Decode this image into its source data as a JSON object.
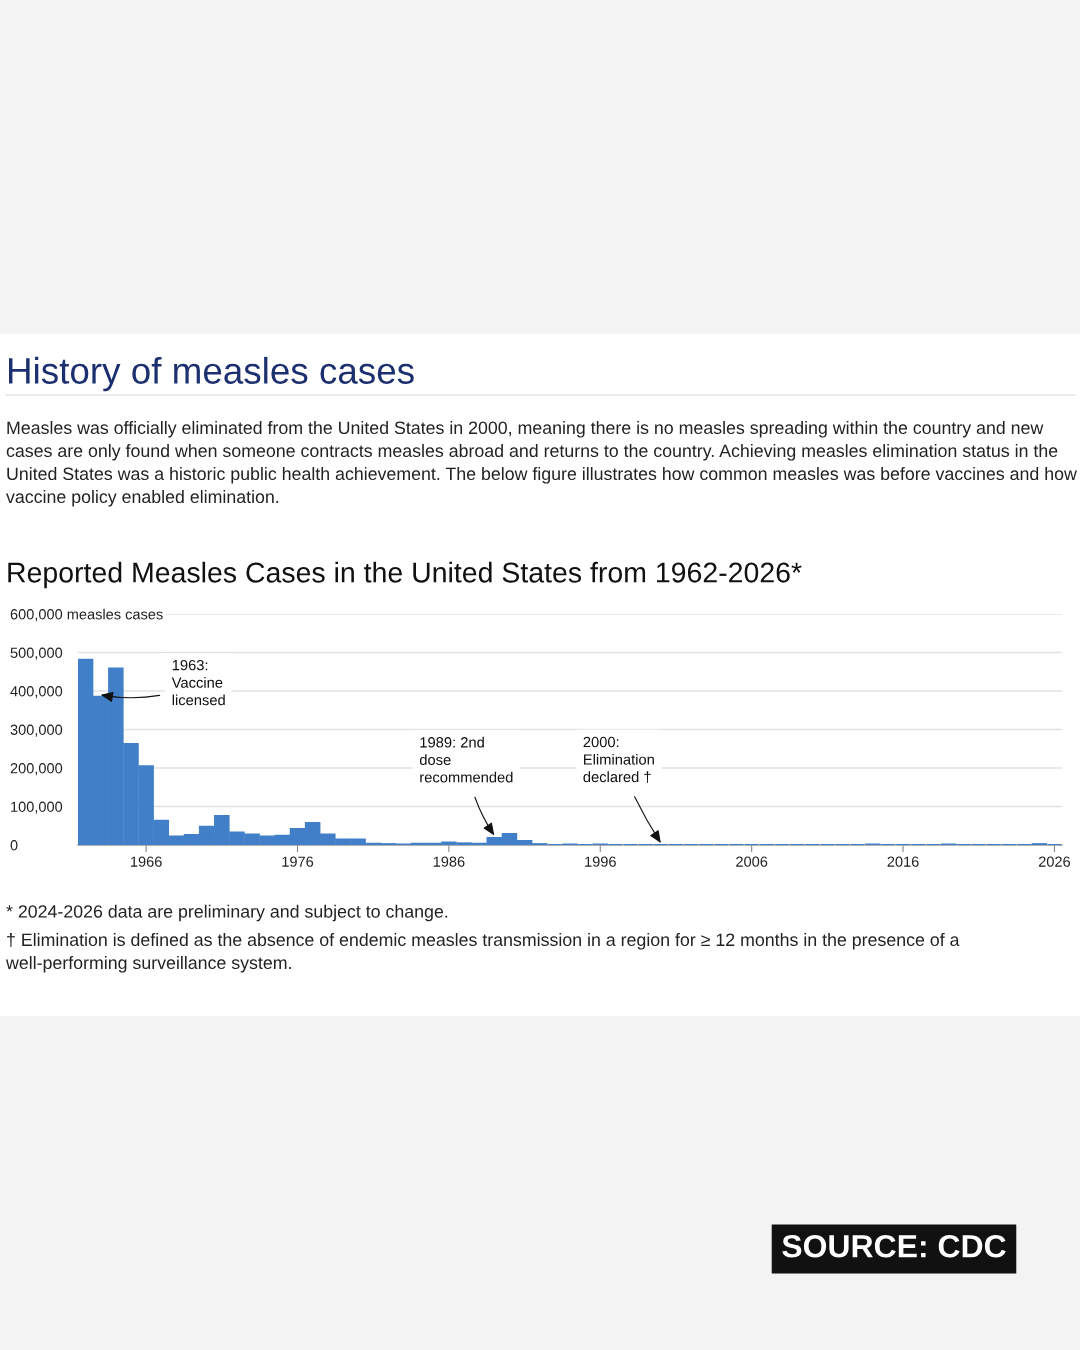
{
  "chart_data": {
    "type": "bar",
    "title": "Reported Measles Cases in the United States from 1962-2026*",
    "x": [
      1962,
      1963,
      1964,
      1965,
      1966,
      1967,
      1968,
      1969,
      1970,
      1971,
      1972,
      1973,
      1974,
      1975,
      1976,
      1977,
      1978,
      1979,
      1980,
      1981,
      1982,
      1983,
      1984,
      1985,
      1986,
      1987,
      1988,
      1989,
      1990,
      1991,
      1992,
      1993,
      1994,
      1995,
      1996,
      1997,
      1998,
      1999,
      2000,
      2001,
      2002,
      2003,
      2004,
      2005,
      2006,
      2007,
      2008,
      2009,
      2010,
      2011,
      2012,
      2013,
      2014,
      2015,
      2016,
      2017,
      2018,
      2019,
      2020,
      2021,
      2022,
      2023,
      2024,
      2025,
      2026
    ],
    "values": [
      481000,
      385000,
      458000,
      262000,
      204000,
      63000,
      22000,
      26000,
      47000,
      75000,
      32000,
      27000,
      22000,
      24000,
      41000,
      57000,
      27000,
      14000,
      14000,
      3000,
      2000,
      1000,
      3000,
      3000,
      6000,
      4000,
      3000,
      18000,
      28000,
      10000,
      2000,
      0,
      1000,
      0,
      1000,
      0,
      0,
      0,
      0,
      0,
      0,
      0,
      0,
      0,
      0,
      0,
      0,
      0,
      0,
      0,
      0,
      0,
      1000,
      0,
      0,
      0,
      0,
      1000,
      0,
      0,
      0,
      0,
      0,
      2000,
      0
    ],
    "color": "#4180c8",
    "xlim": [
      1961.5,
      2026.5
    ],
    "xticks": [
      1966,
      1976,
      1986,
      1996,
      2006,
      2016,
      2026
    ],
    "ylim": [
      0,
      600000
    ],
    "yticks": [
      0,
      {
        "value": 100000,
        "label": "100,000"
      },
      {
        "value": 200000,
        "label": "200,000"
      },
      {
        "value": 300000,
        "label": "300,000"
      },
      {
        "value": 400000,
        "label": "400,000"
      },
      {
        "value": 500000,
        "label": "500,000"
      },
      {
        "value": 600000,
        "label": "600,000 measles cases"
      }
    ],
    "grid": "y",
    "annotations": [
      "History of measles cases",
      "Measles was officially eliminated from the United States in 2000, meaning there is no measles spreading within the country and new cases are only found when someone contracts measles abroad and returns to the country. Achieving measles elimination status in the United States was a historic public health achievement. The below figure illustrates how common measles was before vaccines and how vaccine policy enabled elimination.",
      {
        "text": "1963:\nVaccine\nlicensed",
        "x": 1963,
        "y": 390000
      },
      {
        "text": "1989: 2nd\ndose\nrecommended",
        "x": 1989,
        "y": 25000
      },
      {
        "text": "2000:\nElimination\ndeclared †",
        "x": 2000,
        "y": 5000
      },
      "* 2024-2026 data are preliminary and subject to change.",
      "† Elimination is defined as the absence of endemic measles transmission in a region for ≥ 12 months in the presence of a well-performing surveillance system.",
      "SOURCE: CDC"
    ]
  }
}
